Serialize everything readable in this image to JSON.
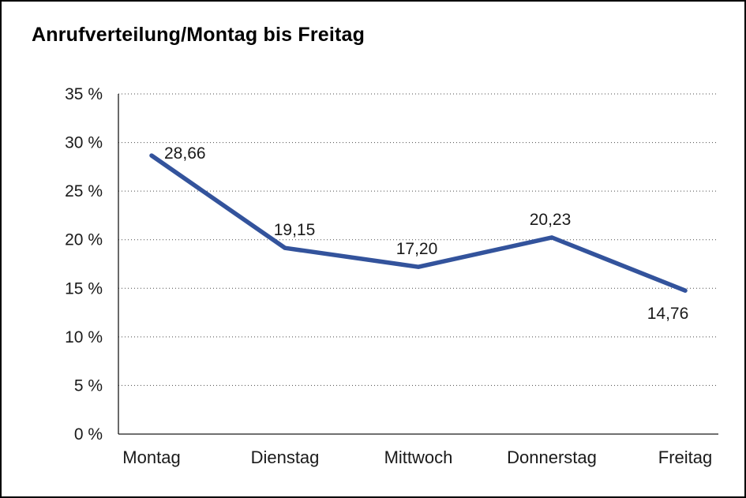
{
  "page": {
    "title": "Anrufverteilung/Montag bis Freitag"
  },
  "chart_data": {
    "type": "line",
    "title": "Anrufverteilung/Montag bis Freitag",
    "categories": [
      "Montag",
      "Dienstag",
      "Mittwoch",
      "Donnerstag",
      "Freitag"
    ],
    "values": [
      28.66,
      19.15,
      17.2,
      20.23,
      14.76
    ],
    "value_labels": [
      "28,66",
      "19,15",
      "17,20",
      "20,23",
      "14,76"
    ],
    "xlabel": "",
    "ylabel": "",
    "ylim": [
      0,
      35
    ],
    "ytick_step": 5,
    "ytick_labels": [
      "0 %",
      "5 %",
      "10 %",
      "15 %",
      "20 %",
      "25 %",
      "30 %",
      "35 %"
    ],
    "grid": "dotted-horizontal",
    "legend": "none",
    "line_color": "#33539C",
    "label_color": "#1a1a1a",
    "label_positions": [
      "right",
      "above-right",
      "above",
      "above",
      "below-left"
    ]
  }
}
